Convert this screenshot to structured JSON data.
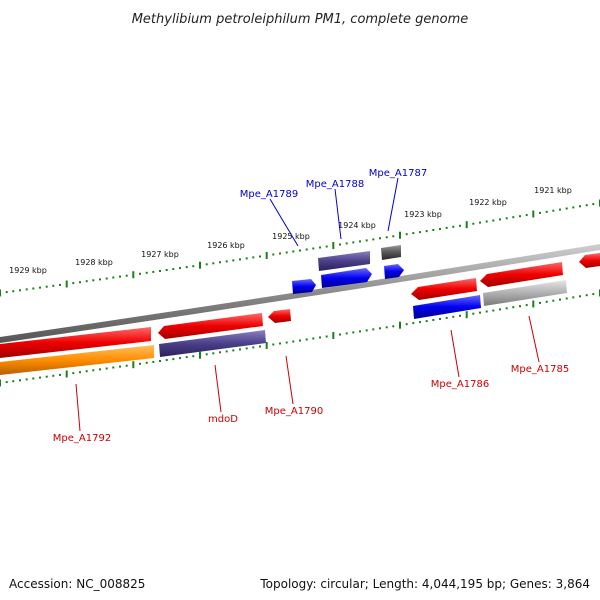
{
  "title": "Methylibium petroleiphilum PM1, complete genome",
  "accession": "Accession: NC_008825",
  "topology": "Topology: circular; Length: 4,044,195 bp; Genes: 3,864",
  "tick_labels": [
    "1929 kbp",
    "1928 kbp",
    "1927 kbp",
    "1926 kbp",
    "1925 kbp",
    "1924 kbp",
    "1923 kbp",
    "1922 kbp",
    "1921 kbp"
  ],
  "gene_labels": {
    "mpe_a1792": "Mpe_A1792",
    "mdod": "mdoD",
    "mpe_a1790": "Mpe_A1790",
    "mpe_a1789": "Mpe_A1789",
    "mpe_a1788": "Mpe_A1788",
    "mpe_a1787": "Mpe_A1787",
    "mpe_a1786": "Mpe_A1786",
    "mpe_a1785": "Mpe_A1785"
  },
  "colors": {
    "backbone": "#888888",
    "tick": "#1b7f1b",
    "red_label": "#cc0000",
    "blue_label": "#0000cc",
    "gene_red": "#ee0000",
    "gene_orange": "#ff8c00",
    "gene_purple": "#4b3f8a",
    "gene_blue": "#0000ee",
    "gene_gray": "#b0b0b0",
    "gene_darkgray": "#555555"
  }
}
